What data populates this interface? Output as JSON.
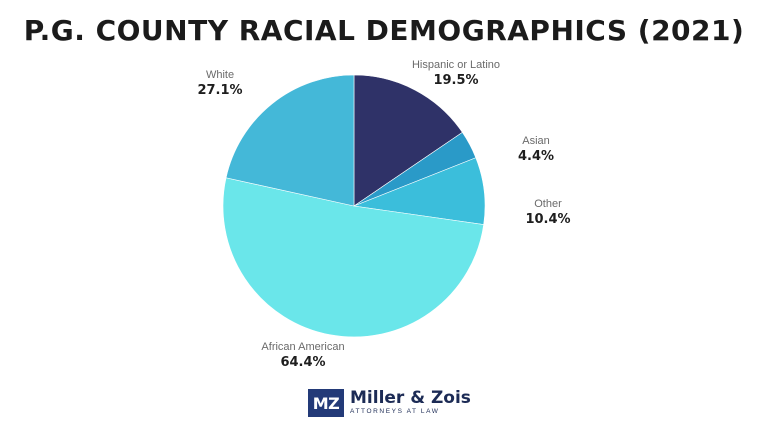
{
  "title": "P.G. COUNTY RACIAL DEMOGRAPHICS (2021)",
  "logo": {
    "mark": "MZ",
    "name": "Miller & Zois",
    "tagline": "ATTORNEYS AT LAW"
  },
  "chart_data": {
    "type": "pie",
    "title": "P.G. COUNTY RACIAL DEMOGRAPHICS (2021)",
    "slices": [
      {
        "label": "Hispanic or Latino",
        "value": 19.5,
        "display": "19.5%",
        "color": "#2f3268"
      },
      {
        "label": "Asian",
        "value": 4.4,
        "display": "4.4%",
        "color": "#2a9ac8"
      },
      {
        "label": "Other",
        "value": 10.4,
        "display": "10.4%",
        "color": "#3bbedb"
      },
      {
        "label": "African American",
        "value": 64.4,
        "display": "64.4%",
        "color": "#6ae6ea"
      },
      {
        "label": "White",
        "value": 27.1,
        "display": "27.1%",
        "color": "#44b8d8"
      }
    ]
  }
}
